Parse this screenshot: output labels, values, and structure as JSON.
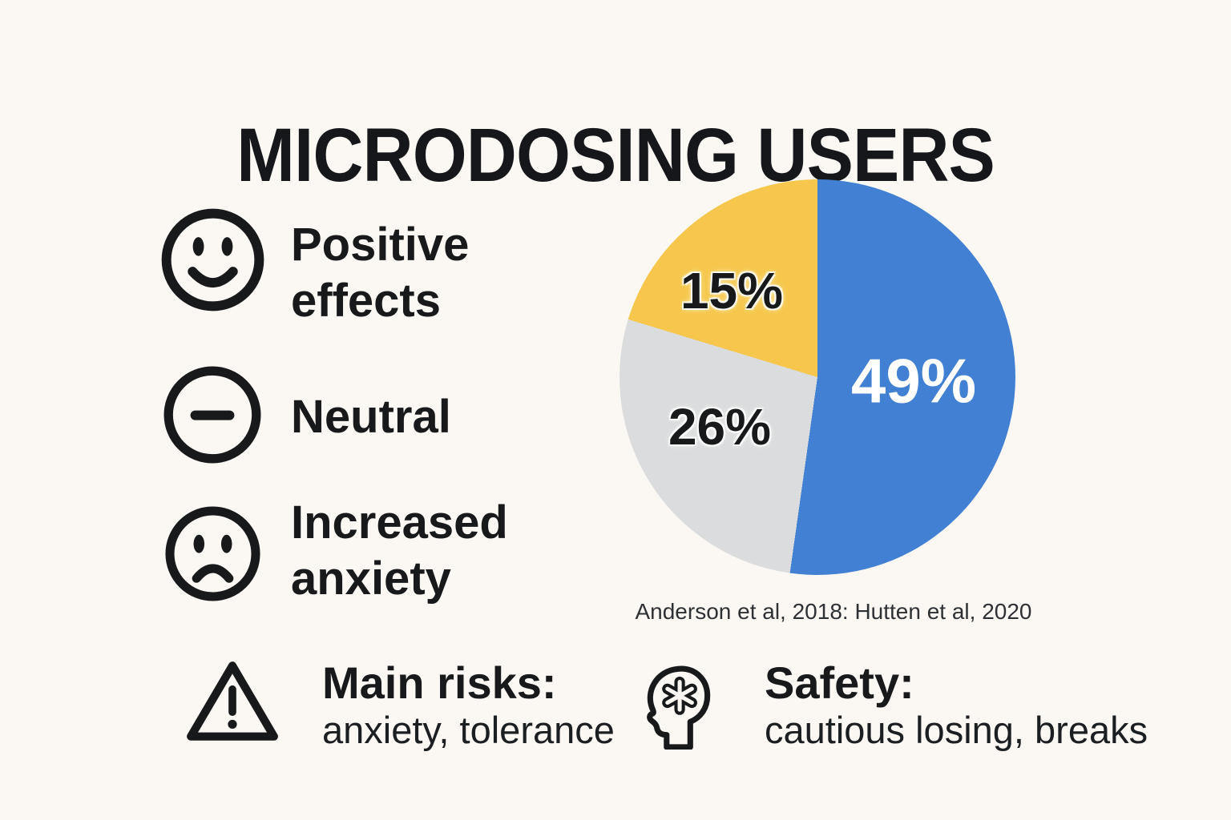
{
  "title": "MICRODOSING USERS",
  "legend": {
    "items": [
      {
        "label": "Positive effects",
        "icon": "smiley-face-icon"
      },
      {
        "label": "Neutral",
        "icon": "neutral-face-icon"
      },
      {
        "label": "Increased anxiety",
        "icon": "sad-face-icon"
      }
    ]
  },
  "chart_data": {
    "type": "pie",
    "title": "MICRODOSING USERS",
    "source": "Anderson et al, 2018: Hutten et al, 2020",
    "legend_position": "left",
    "slices": [
      {
        "label": "Positive effects",
        "value": 49,
        "display": "49%",
        "color": "#4180D2",
        "text_color": "#FFFFFF",
        "start_deg": 0,
        "end_deg": 188,
        "label_x": "367px",
        "label_y": "252px",
        "label_size": "78px"
      },
      {
        "label": "Neutral",
        "value": 26,
        "display": "26%",
        "color": "#DBDCDD",
        "text_color": "#17191B",
        "start_deg": 188,
        "end_deg": 287,
        "label_x": "125px",
        "label_y": "309px",
        "label_size": "64px"
      },
      {
        "label": "Increased anxiety",
        "value": 15,
        "display": "15%",
        "color": "#F6C74C",
        "text_color": "#17191B",
        "start_deg": 287,
        "end_deg": 360,
        "label_x": "140px",
        "label_y": "139px",
        "label_size": "64px"
      }
    ]
  },
  "footer": {
    "risks": {
      "icon": "warning-triangle-icon",
      "heading": "Main risks:",
      "detail": "anxiety, tolerance"
    },
    "safety": {
      "icon": "head-mind-icon",
      "heading": "Safety:",
      "detail": "cautious losing, breaks"
    }
  },
  "colors": {
    "background": "#FBF8F4",
    "ink": "#17191B",
    "blue": "#4180D2",
    "gray": "#DBDCDD",
    "yellow": "#F6C74C"
  }
}
